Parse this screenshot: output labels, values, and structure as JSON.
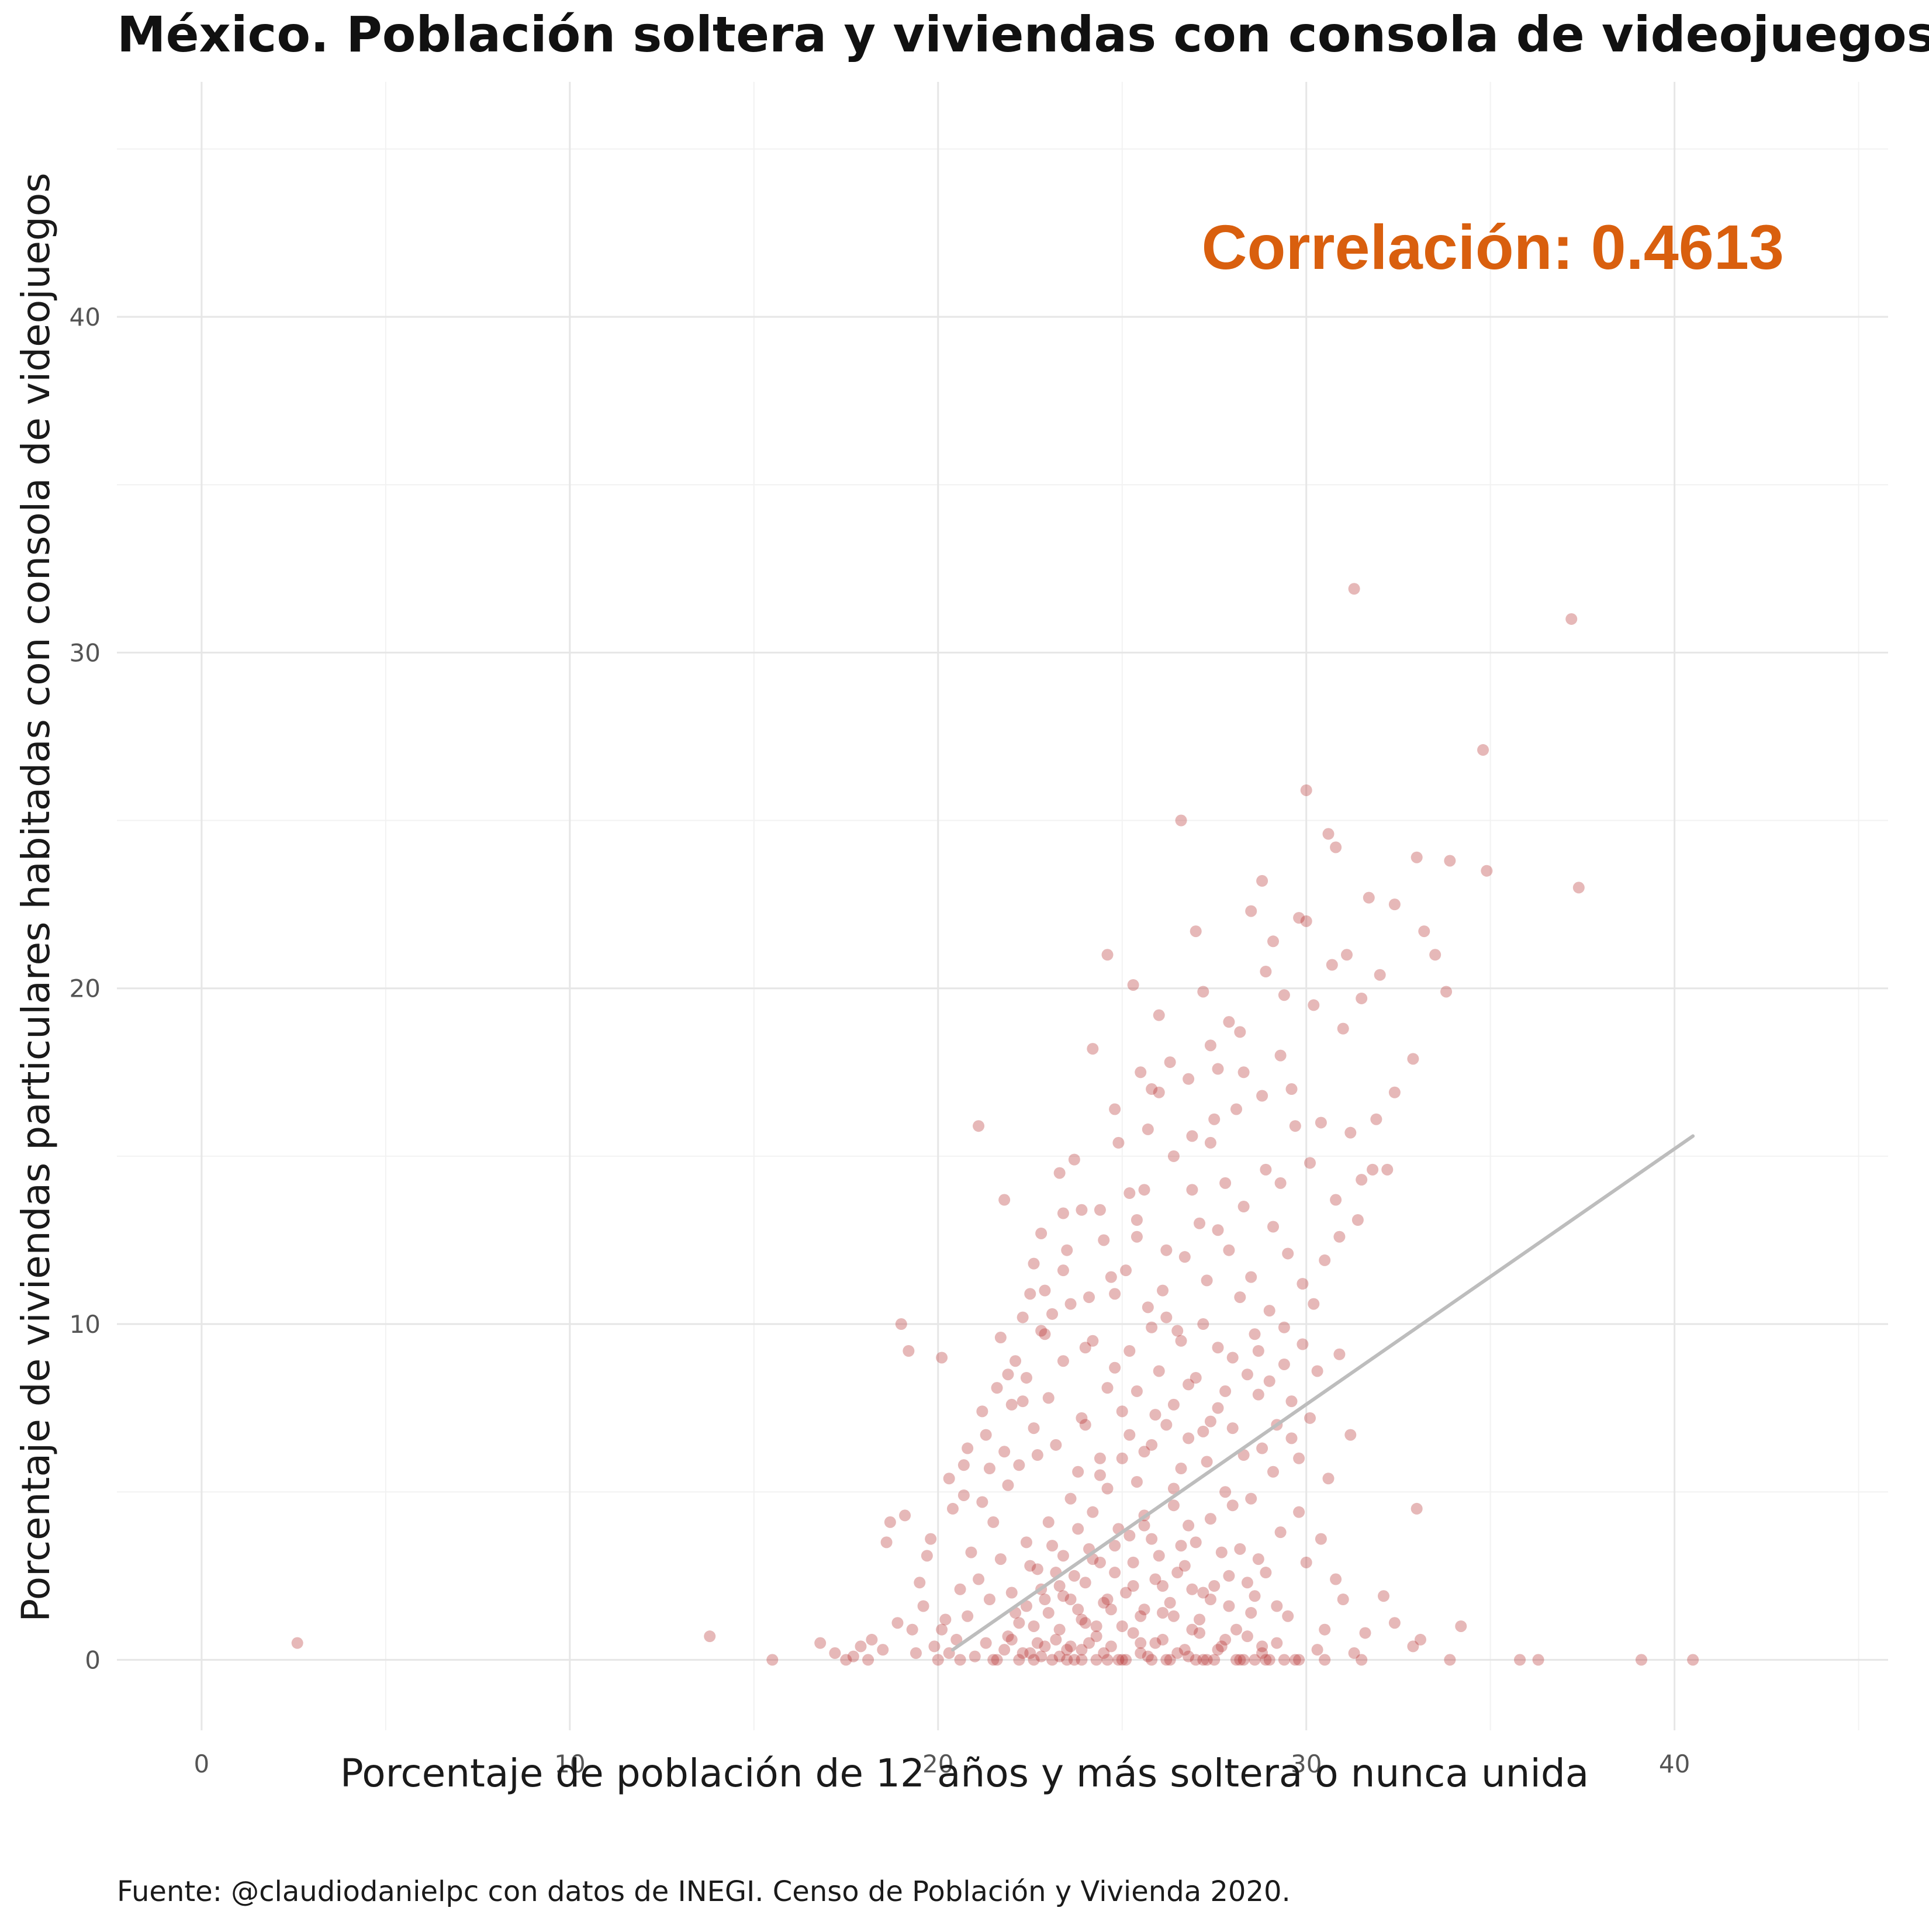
{
  "chart_data": {
    "type": "scatter",
    "title": "México. Población soltera y viviendas con consola de videojuegos",
    "xlabel": "Porcentaje de población de 12 años y más soltera o nunca unida",
    "ylabel": "Porcentaje de viviendas particulares habitadas con consola de videojuegos",
    "caption": "Fuente: @claudiodanielpc con datos de INEGI. Censo de Población y Vivienda 2020.",
    "annotation": "Correlación: 0.4613",
    "xlim": [
      -2.3,
      45.8
    ],
    "ylim": [
      -2.1,
      47.0
    ],
    "x_ticks": [
      0,
      10,
      20,
      30,
      40
    ],
    "y_ticks": [
      0,
      10,
      20,
      30,
      40
    ],
    "x_tick_labels": [
      "0",
      "10",
      "20",
      "30",
      "40"
    ],
    "y_tick_labels": [
      "0",
      "10",
      "20",
      "30",
      "40"
    ],
    "grid": true,
    "colors": {
      "points": "#b22222",
      "trend_line": "#bdbdbd",
      "annotation": "#d95f0e",
      "grid_major": "#e6e6e6",
      "grid_minor": "#f2f2f2"
    },
    "trend_line": {
      "x": [
        20.4,
        40.5
      ],
      "y": [
        0.3,
        15.6
      ]
    },
    "points": [
      [
        2.6,
        0.5
      ],
      [
        13.8,
        0.7
      ],
      [
        15.5,
        0.0
      ],
      [
        16.8,
        0.5
      ],
      [
        17.2,
        0.2
      ],
      [
        17.7,
        0.1
      ],
      [
        18.2,
        0.6
      ],
      [
        18.7,
        4.1
      ],
      [
        18.6,
        3.5
      ],
      [
        19.1,
        4.3
      ],
      [
        19.0,
        10.0
      ],
      [
        19.2,
        9.2
      ],
      [
        19.7,
        3.1
      ],
      [
        19.5,
        2.3
      ],
      [
        20.1,
        9.0
      ],
      [
        20.4,
        4.5
      ],
      [
        20.7,
        5.8
      ],
      [
        21.1,
        15.9
      ],
      [
        21.4,
        5.7
      ],
      [
        21.6,
        8.1
      ],
      [
        21.8,
        13.7
      ],
      [
        22.1,
        8.9
      ],
      [
        22.3,
        7.7
      ],
      [
        22.6,
        11.8
      ],
      [
        22.9,
        9.7
      ],
      [
        23.1,
        10.3
      ],
      [
        23.3,
        14.5
      ],
      [
        23.4,
        13.3
      ],
      [
        23.7,
        14.9
      ],
      [
        24.0,
        9.3
      ],
      [
        24.2,
        18.2
      ],
      [
        24.4,
        13.4
      ],
      [
        24.6,
        21.0
      ],
      [
        24.9,
        15.4
      ],
      [
        25.1,
        11.6
      ],
      [
        25.3,
        20.1
      ],
      [
        25.4,
        13.1
      ],
      [
        25.6,
        14.0
      ],
      [
        25.8,
        17.0
      ],
      [
        26.0,
        16.9
      ],
      [
        26.2,
        12.2
      ],
      [
        26.4,
        15.0
      ],
      [
        26.6,
        25.0
      ],
      [
        26.8,
        17.3
      ],
      [
        27.0,
        21.7
      ],
      [
        27.2,
        19.9
      ],
      [
        27.4,
        15.4
      ],
      [
        27.6,
        12.8
      ],
      [
        27.9,
        19.0
      ],
      [
        28.1,
        16.4
      ],
      [
        28.3,
        17.5
      ],
      [
        28.5,
        22.3
      ],
      [
        28.8,
        23.2
      ],
      [
        28.9,
        20.5
      ],
      [
        29.1,
        21.4
      ],
      [
        29.3,
        18.0
      ],
      [
        29.6,
        17.0
      ],
      [
        29.8,
        22.1
      ],
      [
        30.0,
        25.9
      ],
      [
        30.2,
        19.5
      ],
      [
        30.4,
        16.0
      ],
      [
        30.6,
        24.6
      ],
      [
        30.8,
        24.2
      ],
      [
        31.1,
        21.0
      ],
      [
        31.3,
        31.9
      ],
      [
        31.5,
        19.7
      ],
      [
        31.7,
        22.7
      ],
      [
        32.0,
        20.4
      ],
      [
        32.2,
        14.6
      ],
      [
        32.4,
        22.5
      ],
      [
        32.9,
        17.9
      ],
      [
        33.0,
        23.9
      ],
      [
        33.2,
        21.7
      ],
      [
        33.5,
        21.0
      ],
      [
        33.8,
        19.9
      ],
      [
        33.9,
        23.8
      ],
      [
        34.8,
        27.1
      ],
      [
        34.9,
        23.5
      ],
      [
        37.2,
        31.0
      ],
      [
        37.4,
        23.0
      ],
      [
        31.4,
        13.1
      ],
      [
        30.9,
        9.1
      ],
      [
        31.2,
        6.7
      ],
      [
        33.0,
        4.5
      ],
      [
        32.4,
        1.1
      ],
      [
        32.9,
        0.4
      ],
      [
        33.1,
        0.6
      ],
      [
        34.2,
        1.0
      ],
      [
        33.9,
        0.0
      ],
      [
        35.8,
        0.0
      ],
      [
        36.3,
        0.0
      ],
      [
        39.1,
        0.0
      ],
      [
        40.5,
        0.0
      ],
      [
        30.5,
        0.0
      ],
      [
        31.3,
        0.2
      ],
      [
        29.8,
        6.0
      ],
      [
        30.3,
        8.6
      ],
      [
        29.5,
        12.1
      ],
      [
        28.7,
        9.2
      ],
      [
        27.3,
        11.3
      ],
      [
        26.5,
        9.8
      ],
      [
        25.7,
        10.5
      ],
      [
        24.8,
        8.7
      ],
      [
        23.9,
        7.2
      ],
      [
        22.7,
        6.1
      ],
      [
        21.9,
        5.2
      ],
      [
        21.2,
        4.7
      ],
      [
        20.9,
        3.2
      ],
      [
        20.6,
        2.1
      ],
      [
        20.2,
        1.2
      ],
      [
        19.9,
        0.4
      ],
      [
        19.4,
        0.2
      ],
      [
        18.9,
        1.1
      ],
      [
        21.5,
        0.0
      ],
      [
        21.8,
        0.3
      ],
      [
        22.0,
        0.6
      ],
      [
        22.2,
        1.1
      ],
      [
        22.4,
        1.6
      ],
      [
        22.5,
        0.2
      ],
      [
        22.6,
        0.0
      ],
      [
        22.8,
        2.1
      ],
      [
        22.9,
        0.4
      ],
      [
        23.0,
        1.4
      ],
      [
        23.1,
        0.0
      ],
      [
        23.2,
        2.6
      ],
      [
        23.3,
        0.9
      ],
      [
        23.4,
        3.1
      ],
      [
        23.5,
        0.3
      ],
      [
        23.6,
        1.8
      ],
      [
        23.7,
        0.0
      ],
      [
        23.8,
        3.9
      ],
      [
        23.9,
        1.2
      ],
      [
        24.0,
        2.3
      ],
      [
        24.1,
        0.5
      ],
      [
        24.2,
        4.4
      ],
      [
        24.3,
        1.0
      ],
      [
        24.4,
        2.9
      ],
      [
        24.5,
        0.2
      ],
      [
        24.6,
        5.1
      ],
      [
        24.7,
        1.5
      ],
      [
        24.8,
        3.4
      ],
      [
        24.9,
        0.0
      ],
      [
        25.0,
        6.0
      ],
      [
        25.1,
        2.0
      ],
      [
        25.2,
        3.7
      ],
      [
        25.3,
        0.8
      ],
      [
        25.4,
        5.3
      ],
      [
        25.5,
        1.3
      ],
      [
        25.6,
        4.0
      ],
      [
        25.7,
        0.1
      ],
      [
        25.8,
        6.4
      ],
      [
        25.9,
        2.4
      ],
      [
        26.0,
        3.1
      ],
      [
        26.1,
        0.6
      ],
      [
        26.2,
        7.0
      ],
      [
        26.3,
        1.7
      ],
      [
        26.4,
        4.6
      ],
      [
        26.5,
        0.2
      ],
      [
        26.6,
        5.7
      ],
      [
        26.7,
        2.8
      ],
      [
        26.8,
        8.2
      ],
      [
        26.9,
        0.9
      ],
      [
        27.0,
        3.5
      ],
      [
        27.1,
        1.2
      ],
      [
        27.2,
        6.8
      ],
      [
        27.3,
        0.0
      ],
      [
        27.4,
        4.2
      ],
      [
        27.5,
        2.2
      ],
      [
        27.6,
        7.5
      ],
      [
        27.7,
        0.4
      ],
      [
        27.8,
        5.0
      ],
      [
        27.9,
        1.6
      ],
      [
        28.0,
        9.0
      ],
      [
        28.1,
        0.0
      ],
      [
        28.2,
        3.3
      ],
      [
        28.3,
        6.1
      ],
      [
        28.4,
        0.7
      ],
      [
        28.5,
        4.8
      ],
      [
        28.6,
        1.9
      ],
      [
        28.7,
        7.9
      ],
      [
        28.8,
        0.2
      ],
      [
        28.9,
        2.6
      ],
      [
        29.0,
        10.4
      ],
      [
        29.1,
        5.6
      ],
      [
        29.2,
        0.5
      ],
      [
        29.3,
        3.8
      ],
      [
        29.4,
        8.8
      ],
      [
        29.5,
        1.3
      ],
      [
        29.6,
        6.6
      ],
      [
        29.7,
        0.0
      ],
      [
        29.8,
        4.4
      ],
      [
        29.9,
        11.2
      ],
      [
        30.0,
        2.9
      ],
      [
        30.1,
        7.2
      ],
      [
        30.3,
        0.3
      ],
      [
        30.4,
        3.6
      ],
      [
        30.6,
        5.4
      ],
      [
        30.8,
        2.4
      ],
      [
        31.0,
        1.8
      ],
      [
        31.6,
        0.8
      ],
      [
        32.1,
        1.9
      ],
      [
        30.1,
        14.8
      ],
      [
        29.7,
        15.9
      ],
      [
        28.9,
        14.6
      ],
      [
        28.3,
        13.5
      ],
      [
        27.8,
        14.2
      ],
      [
        27.1,
        13.0
      ],
      [
        26.7,
        12.0
      ],
      [
        26.1,
        11.0
      ],
      [
        25.4,
        12.6
      ],
      [
        24.7,
        11.4
      ],
      [
        24.1,
        10.8
      ],
      [
        23.5,
        12.2
      ],
      [
        22.9,
        11.0
      ],
      [
        22.3,
        10.2
      ],
      [
        21.7,
        9.6
      ],
      [
        21.2,
        7.4
      ],
      [
        20.8,
        6.3
      ],
      [
        20.3,
        5.4
      ],
      [
        19.8,
        3.6
      ],
      [
        19.6,
        1.6
      ],
      [
        19.3,
        0.9
      ],
      [
        18.5,
        0.3
      ],
      [
        18.1,
        0.0
      ],
      [
        17.9,
        0.4
      ],
      [
        17.5,
        0.0
      ],
      [
        20.0,
        0.0
      ],
      [
        20.1,
        0.9
      ],
      [
        20.3,
        0.2
      ],
      [
        20.5,
        0.6
      ],
      [
        20.6,
        0.0
      ],
      [
        20.8,
        1.3
      ],
      [
        21.0,
        0.1
      ],
      [
        21.1,
        2.4
      ],
      [
        21.3,
        0.5
      ],
      [
        21.4,
        1.8
      ],
      [
        21.6,
        0.0
      ],
      [
        21.7,
        3.0
      ],
      [
        21.9,
        0.7
      ],
      [
        22.0,
        2.0
      ],
      [
        22.2,
        0.0
      ],
      [
        22.4,
        3.5
      ],
      [
        22.6,
        1.0
      ],
      [
        22.7,
        2.7
      ],
      [
        22.8,
        0.1
      ],
      [
        23.0,
        4.1
      ],
      [
        23.2,
        0.6
      ],
      [
        23.3,
        2.2
      ],
      [
        23.5,
        0.0
      ],
      [
        23.6,
        4.8
      ],
      [
        23.8,
        1.5
      ],
      [
        23.9,
        0.3
      ],
      [
        24.1,
        3.3
      ],
      [
        24.3,
        0.0
      ],
      [
        24.4,
        5.5
      ],
      [
        24.6,
        1.8
      ],
      [
        24.7,
        0.4
      ],
      [
        24.9,
        3.9
      ],
      [
        25.0,
        0.0
      ],
      [
        25.2,
        6.7
      ],
      [
        25.3,
        2.2
      ],
      [
        25.5,
        0.5
      ],
      [
        25.6,
        4.3
      ],
      [
        25.8,
        0.0
      ],
      [
        25.9,
        7.3
      ],
      [
        26.1,
        1.4
      ],
      [
        26.2,
        0.0
      ],
      [
        26.4,
        5.1
      ],
      [
        26.5,
        2.6
      ],
      [
        26.7,
        0.3
      ],
      [
        26.8,
        4.0
      ],
      [
        27.0,
        0.0
      ],
      [
        27.2,
        2.0
      ],
      [
        27.3,
        5.9
      ],
      [
        27.5,
        0.0
      ],
      [
        27.7,
        3.2
      ],
      [
        27.8,
        0.6
      ],
      [
        28.0,
        4.6
      ],
      [
        28.2,
        0.0
      ],
      [
        28.4,
        2.3
      ],
      [
        28.6,
        0.0
      ],
      [
        28.7,
        3.0
      ],
      [
        28.9,
        0.0
      ],
      [
        29.2,
        1.6
      ],
      [
        29.4,
        0.0
      ],
      [
        29.8,
        0.0
      ],
      [
        30.5,
        0.9
      ],
      [
        31.5,
        0.0
      ],
      [
        22.1,
        1.4
      ],
      [
        22.3,
        0.2
      ],
      [
        22.5,
        2.8
      ],
      [
        22.7,
        0.5
      ],
      [
        22.9,
        1.8
      ],
      [
        23.1,
        3.4
      ],
      [
        23.3,
        0.1
      ],
      [
        23.4,
        1.9
      ],
      [
        23.6,
        0.4
      ],
      [
        23.7,
        2.5
      ],
      [
        23.9,
        0.0
      ],
      [
        24.0,
        1.1
      ],
      [
        24.2,
        3.0
      ],
      [
        24.3,
        0.7
      ],
      [
        24.5,
        1.7
      ],
      [
        24.6,
        0.0
      ],
      [
        24.8,
        2.6
      ],
      [
        25.0,
        1.0
      ],
      [
        25.1,
        0.0
      ],
      [
        25.3,
        2.9
      ],
      [
        25.5,
        0.2
      ],
      [
        25.6,
        1.5
      ],
      [
        25.8,
        3.6
      ],
      [
        25.9,
        0.5
      ],
      [
        26.1,
        2.2
      ],
      [
        26.3,
        0.0
      ],
      [
        26.4,
        1.3
      ],
      [
        26.6,
        3.4
      ],
      [
        26.8,
        0.1
      ],
      [
        26.9,
        2.1
      ],
      [
        27.1,
        0.8
      ],
      [
        27.2,
        0.0
      ],
      [
        27.4,
        1.8
      ],
      [
        27.6,
        0.3
      ],
      [
        27.9,
        2.5
      ],
      [
        28.1,
        0.9
      ],
      [
        28.3,
        0.0
      ],
      [
        28.5,
        1.4
      ],
      [
        28.8,
        0.4
      ],
      [
        29.0,
        0.0
      ],
      [
        21.5,
        4.1
      ],
      [
        21.8,
        6.2
      ],
      [
        22.0,
        7.6
      ],
      [
        22.2,
        5.8
      ],
      [
        22.4,
        8.4
      ],
      [
        22.6,
        6.9
      ],
      [
        22.8,
        9.8
      ],
      [
        23.0,
        7.8
      ],
      [
        23.2,
        6.4
      ],
      [
        23.4,
        8.9
      ],
      [
        23.6,
        10.6
      ],
      [
        23.8,
        5.6
      ],
      [
        24.0,
        7.0
      ],
      [
        24.2,
        9.5
      ],
      [
        24.4,
        6.0
      ],
      [
        24.6,
        8.1
      ],
      [
        24.8,
        10.9
      ],
      [
        25.0,
        7.4
      ],
      [
        25.2,
        9.2
      ],
      [
        25.4,
        8.0
      ],
      [
        25.6,
        6.2
      ],
      [
        25.8,
        9.9
      ],
      [
        26.0,
        8.6
      ],
      [
        26.2,
        10.2
      ],
      [
        26.4,
        7.6
      ],
      [
        26.6,
        9.5
      ],
      [
        26.8,
        6.6
      ],
      [
        27.0,
        8.4
      ],
      [
        27.2,
        10.0
      ],
      [
        27.4,
        7.1
      ],
      [
        27.6,
        9.3
      ],
      [
        27.8,
        8.0
      ],
      [
        28.0,
        6.9
      ],
      [
        28.2,
        10.8
      ],
      [
        28.4,
        8.5
      ],
      [
        28.6,
        9.7
      ],
      [
        28.8,
        6.3
      ],
      [
        29.0,
        8.3
      ],
      [
        29.2,
        7.0
      ],
      [
        29.4,
        9.9
      ],
      [
        29.6,
        7.7
      ],
      [
        29.9,
        9.4
      ],
      [
        30.2,
        10.6
      ],
      [
        30.5,
        11.9
      ],
      [
        30.8,
        13.7
      ],
      [
        31.2,
        15.7
      ],
      [
        31.5,
        14.3
      ],
      [
        31.8,
        14.6
      ],
      [
        29.1,
        12.9
      ],
      [
        28.5,
        11.4
      ],
      [
        27.9,
        12.2
      ],
      [
        27.5,
        16.1
      ],
      [
        26.9,
        14.0
      ],
      [
        26.3,
        17.8
      ],
      [
        25.7,
        15.8
      ],
      [
        25.2,
        13.9
      ],
      [
        24.5,
        12.5
      ],
      [
        23.9,
        13.4
      ],
      [
        23.4,
        11.6
      ],
      [
        22.8,
        12.7
      ],
      [
        22.5,
        10.9
      ],
      [
        21.9,
        8.5
      ],
      [
        21.3,
        6.7
      ],
      [
        20.7,
        4.9
      ],
      [
        30.7,
        20.7
      ],
      [
        31.9,
        16.1
      ],
      [
        29.4,
        19.8
      ],
      [
        28.2,
        18.7
      ],
      [
        27.6,
        17.6
      ],
      [
        26.0,
        19.2
      ],
      [
        25.5,
        17.5
      ],
      [
        24.8,
        16.4
      ],
      [
        29.3,
        14.2
      ],
      [
        28.8,
        16.8
      ],
      [
        27.4,
        18.3
      ],
      [
        26.9,
        15.6
      ],
      [
        30.9,
        12.6
      ],
      [
        31.0,
        18.8
      ],
      [
        32.4,
        16.9
      ],
      [
        30.0,
        22.0
      ]
    ]
  }
}
